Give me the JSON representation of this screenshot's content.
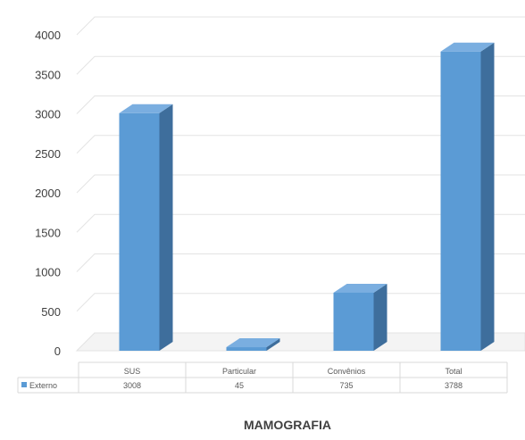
{
  "chart_data": {
    "type": "bar",
    "style": "3d-column",
    "title": "MAMOGRAFIA",
    "categories": [
      "SUS",
      "Particular",
      "Convênios",
      "Total"
    ],
    "series": [
      {
        "name": "Externo",
        "values": [
          3008,
          45,
          735,
          3788
        ]
      }
    ],
    "value_labels": [
      "3008",
      "45",
      "735",
      "3788"
    ],
    "ylim": [
      0,
      4000
    ],
    "yticks": [
      0,
      500,
      1000,
      1500,
      2000,
      2500,
      3000,
      3500,
      4000
    ],
    "grid": true,
    "legend": "data-table",
    "colors": {
      "bar_front": "#5b9bd5",
      "bar_side": "#3e6e9c",
      "bar_top": "#7aaee0",
      "grid": "#e3e3e3",
      "text": "#404040"
    }
  }
}
